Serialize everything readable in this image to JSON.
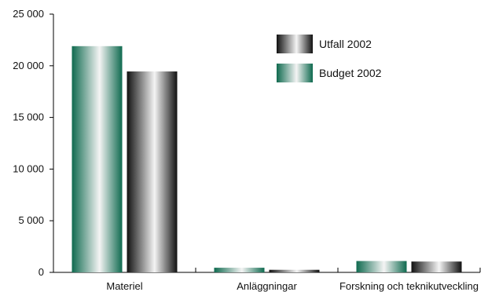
{
  "chart_data": {
    "type": "bar",
    "categories": [
      "Materiel",
      "Anläggningar",
      "Forskning och teknikutveckling"
    ],
    "series": [
      {
        "name": "Budget 2002",
        "values": [
          21900,
          450,
          1100
        ],
        "color_dark": "#0f6a4f",
        "color_light": "#f4f4f4"
      },
      {
        "name": "Utfall 2002",
        "values": [
          19450,
          250,
          1050
        ],
        "color_dark": "#111111",
        "color_light": "#f4f4f4"
      }
    ],
    "yticks": [
      "0",
      "5 000",
      "10 000",
      "15 000",
      "20 000",
      "25 000"
    ],
    "ylim": [
      0,
      25000
    ],
    "grid": false,
    "legend_position": "top-right",
    "legend_order": [
      "Utfall 2002",
      "Budget 2002"
    ],
    "title": "",
    "xlabel": "",
    "ylabel": ""
  }
}
